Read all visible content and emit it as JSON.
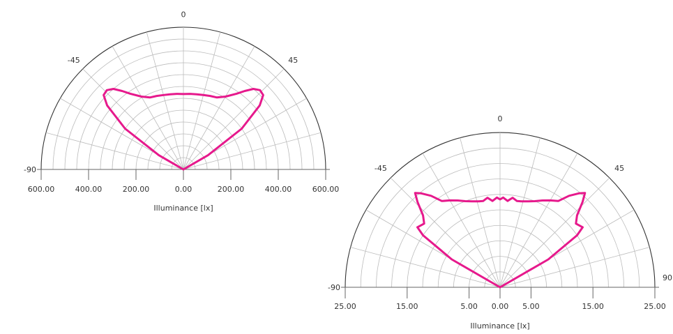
{
  "colors": {
    "curve": "#e6198c",
    "outer": "#333333",
    "grid": "#bbbbbb",
    "axis": "#666666"
  },
  "chart_data": [
    {
      "type": "polar",
      "angle_labels": [
        "-90",
        "-45",
        "0",
        "45"
      ],
      "angles": [
        -90,
        -45,
        0,
        45
      ],
      "r_max": 600,
      "rings": 12,
      "spokes_step_deg": 15,
      "x_ticks": [
        {
          "value": -600,
          "label": "600.00"
        },
        {
          "value": -400,
          "label": "400.00"
        },
        {
          "value": -200,
          "label": "200.00"
        },
        {
          "value": 0,
          "label": "0.00"
        },
        {
          "value": 200,
          "label": "200.00"
        },
        {
          "value": 400,
          "label": "400.00"
        },
        {
          "value": 600,
          "label": "600.00"
        }
      ],
      "xlabel": "Illuminance [lx]",
      "series": [
        {
          "points": [
            [
              -90,
              0
            ],
            [
              -70,
              0
            ],
            [
              -60,
              120
            ],
            [
              -55,
              300
            ],
            [
              -50,
              420
            ],
            [
              -47,
              460
            ],
            [
              -44,
              465
            ],
            [
              -41,
              450
            ],
            [
              -38,
              420
            ],
            [
              -35,
              390
            ],
            [
              -30,
              355
            ],
            [
              -25,
              335
            ],
            [
              -20,
              330
            ],
            [
              -15,
              325
            ],
            [
              -10,
              322
            ],
            [
              -5,
              320
            ],
            [
              0,
              318
            ],
            [
              5,
              320
            ],
            [
              10,
              322
            ],
            [
              15,
              325
            ],
            [
              20,
              330
            ],
            [
              25,
              335
            ],
            [
              30,
              355
            ],
            [
              35,
              390
            ],
            [
              38,
              420
            ],
            [
              41,
              450
            ],
            [
              44,
              465
            ],
            [
              47,
              460
            ],
            [
              50,
              420
            ],
            [
              55,
              300
            ],
            [
              60,
              120
            ],
            [
              70,
              0
            ],
            [
              90,
              0
            ]
          ]
        }
      ]
    },
    {
      "type": "polar",
      "angle_labels": [
        "-90",
        "-45",
        "0",
        "45",
        "90"
      ],
      "angles": [
        -90,
        -45,
        0,
        45,
        90
      ],
      "r_max": 25,
      "rings": 10,
      "spokes_step_deg": 15,
      "x_ticks": [
        {
          "value": -25,
          "label": "25.00"
        },
        {
          "value": -15,
          "label": "15.00"
        },
        {
          "value": -5,
          "label": "5.00"
        },
        {
          "value": 0,
          "label": "0.00"
        },
        {
          "value": 5,
          "label": "5.00"
        },
        {
          "value": 15,
          "label": "15.00"
        },
        {
          "value": 25,
          "label": "25.00"
        }
      ],
      "xlabel": "Illuminance [lx]",
      "series": [
        {
          "points": [
            [
              -90,
              0
            ],
            [
              -70,
              0
            ],
            [
              -60,
              9
            ],
            [
              -56,
              15
            ],
            [
              -54,
              16.5
            ],
            [
              -50,
              16
            ],
            [
              -47,
              17
            ],
            [
              -44,
              19.2
            ],
            [
              -42,
              20.5
            ],
            [
              -40,
              19.8
            ],
            [
              -37,
              18.5
            ],
            [
              -34,
              16.8
            ],
            [
              -30,
              16.2
            ],
            [
              -26,
              15.6
            ],
            [
              -22,
              15.0
            ],
            [
              -18,
              14.6
            ],
            [
              -14,
              14.3
            ],
            [
              -11,
              14.2
            ],
            [
              -8,
              14.6
            ],
            [
              -5,
              14.0
            ],
            [
              -2,
              14.5
            ],
            [
              0,
              14.2
            ],
            [
              2,
              14.5
            ],
            [
              5,
              14.0
            ],
            [
              8,
              14.6
            ],
            [
              11,
              14.2
            ],
            [
              14,
              14.3
            ],
            [
              18,
              14.6
            ],
            [
              22,
              15.0
            ],
            [
              26,
              15.6
            ],
            [
              30,
              16.2
            ],
            [
              34,
              16.8
            ],
            [
              37,
              18.5
            ],
            [
              40,
              19.8
            ],
            [
              42,
              20.5
            ],
            [
              44,
              19.2
            ],
            [
              47,
              17
            ],
            [
              50,
              16
            ],
            [
              54,
              16.5
            ],
            [
              56,
              15
            ],
            [
              60,
              9
            ],
            [
              70,
              0
            ],
            [
              90,
              0
            ]
          ]
        }
      ]
    }
  ]
}
